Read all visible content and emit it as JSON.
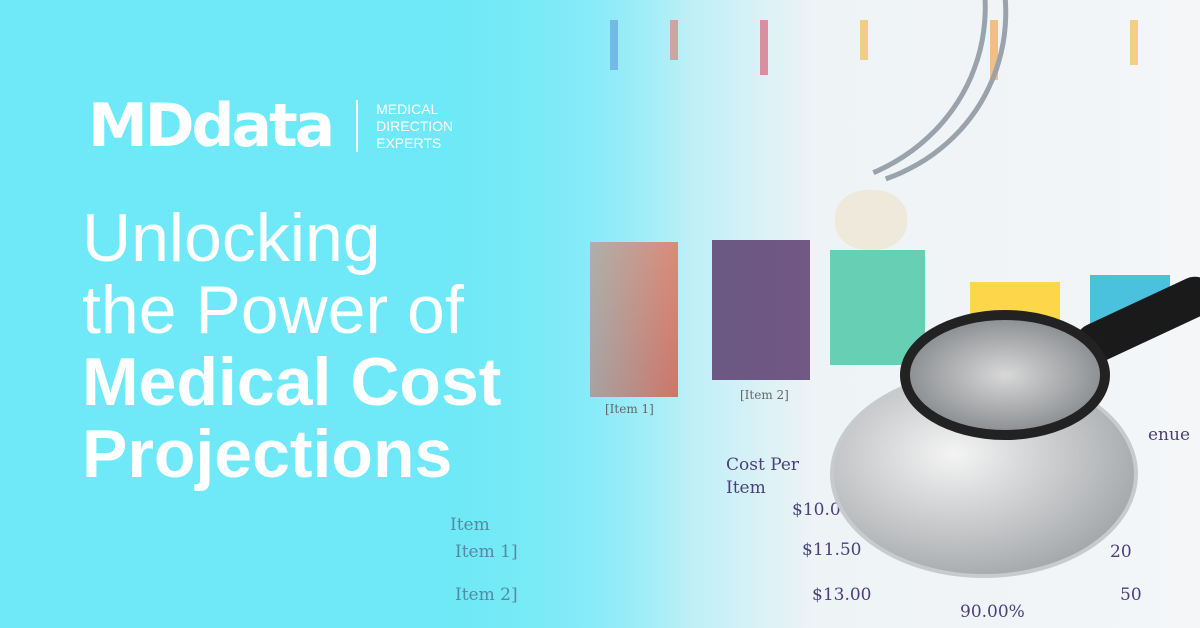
{
  "brand": {
    "logo_text": "MDdata",
    "tagline_lines": [
      "MEDICAL",
      "DIRECTION",
      "EXPERTS"
    ]
  },
  "headline": {
    "light_lines": [
      "Unlocking",
      "the Power of"
    ],
    "bold_lines": [
      "Medical Cost",
      "Projections"
    ]
  },
  "photo": {
    "description_icon": "stethoscope-on-chart",
    "labels": {
      "item1": "[Item 1]",
      "item2": "[Item 2]",
      "cost_per": "Cost Per",
      "item": "Item",
      "rev": "enue",
      "price1": "$10.0",
      "price2": "$11.50",
      "price3": "$13.00",
      "pct": "90.00%",
      "n1": "20",
      "n2": "50",
      "left_item": "Item",
      "left_item1": "Item 1]",
      "left_item2": "Item 2]"
    },
    "bar_colors": [
      "#e8735a",
      "#5a3d6e",
      "#4fc9a8",
      "#ffd02a",
      "#2bb8d8"
    ]
  },
  "colors": {
    "background": "#6fe9f7",
    "text": "#ffffff"
  }
}
